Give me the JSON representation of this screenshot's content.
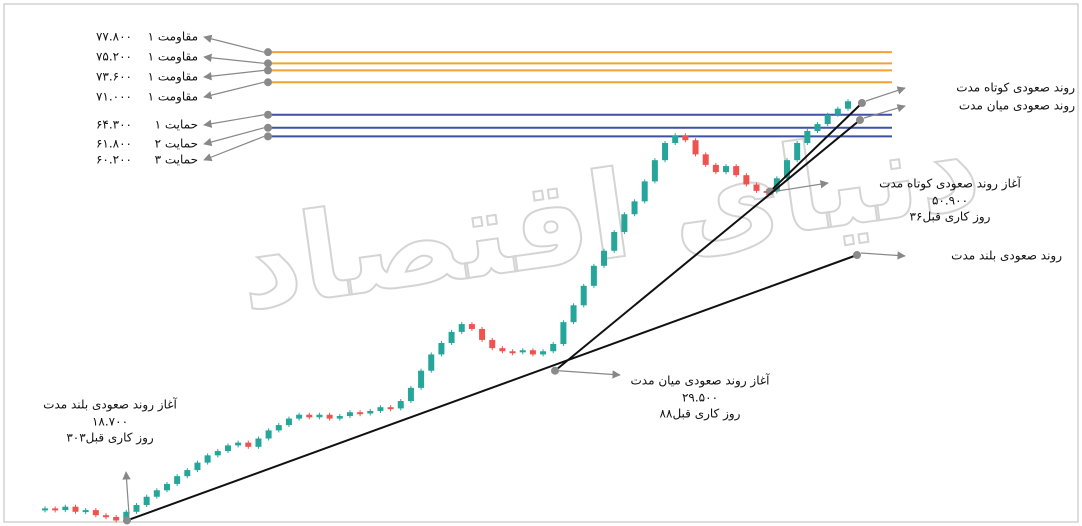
{
  "chart_data": {
    "type": "candlestick",
    "watermark": "دنیای اقتصاد",
    "log_scale": true,
    "ylim": [
      18500,
      80000
    ],
    "up_color": "#26a69a",
    "down_color": "#ef5350",
    "closes": [
      19400,
      19300,
      19500,
      19200,
      19300,
      19000,
      18900,
      18700,
      19200,
      19600,
      20100,
      20500,
      20900,
      21400,
      21800,
      22300,
      22800,
      23100,
      23500,
      23700,
      23400,
      24000,
      24600,
      25000,
      25500,
      25800,
      25600,
      25800,
      25500,
      25700,
      26000,
      25900,
      26100,
      26400,
      26300,
      26900,
      28000,
      29500,
      31000,
      32100,
      33200,
      34000,
      33500,
      32400,
      31600,
      31300,
      31200,
      31400,
      31000,
      31300,
      32000,
      34200,
      36000,
      38200,
      40600,
      42500,
      45000,
      47500,
      49400,
      52500,
      56000,
      59000,
      60400,
      59500,
      57000,
      55200,
      54000,
      55000,
      53500,
      52000,
      51000,
      50900,
      53000,
      56000,
      59000,
      61200,
      62500,
      64300,
      65500,
      67000
    ],
    "levels": [
      {
        "name": "مقاومت ۱",
        "price": {
          "value": 77800,
          "label": "۷۷.۸۰۰"
        },
        "color": "#f5a030"
      },
      {
        "name": "مقاومت ۱",
        "price": {
          "value": 75200,
          "label": "۷۵.۲۰۰"
        },
        "color": "#f5a030"
      },
      {
        "name": "مقاومت ۱",
        "price": {
          "value": 73600,
          "label": "۷۳.۶۰۰"
        },
        "color": "#f5a030"
      },
      {
        "name": "مقاومت ۱",
        "price": {
          "value": 71000,
          "label": "۷۱.۰۰۰"
        },
        "color": "#f5a030"
      },
      {
        "name": "حمایت ۱",
        "price": {
          "value": 64300,
          "label": "۶۴.۳۰۰"
        },
        "color": "#3f51a5"
      },
      {
        "name": "حمایت ۲",
        "price": {
          "value": 61800,
          "label": "۶۱.۸۰۰"
        },
        "color": "#3f51a5"
      },
      {
        "name": "حمایت ۳",
        "price": {
          "value": 60200,
          "label": "۶۰.۲۰۰"
        },
        "color": "#3f51a5"
      }
    ],
    "trends": [
      {
        "name": "روند صعودی کوتاه مدت",
        "start_label": "آغاز روند صعودی کوتاه مدت",
        "start": {
          "value": 50900,
          "label": "۵۰.۹۰۰"
        },
        "days": "۳۶روز کاری قبل"
      },
      {
        "name": "روند صعودی میان مدت",
        "start_label": "آغاز روند صعودی میان مدت",
        "start": {
          "value": 29500,
          "label": "۲۹.۵۰۰"
        },
        "days": "۸۸روز کاری قبل"
      },
      {
        "name": "روند صعودی بلند مدت",
        "start_label": "آغاز روند صعودی بلند مدت",
        "start": {
          "value": 18700,
          "label": "۱۸.۷۰۰"
        },
        "days": "۳۰۳روز کاری قبل"
      }
    ]
  }
}
